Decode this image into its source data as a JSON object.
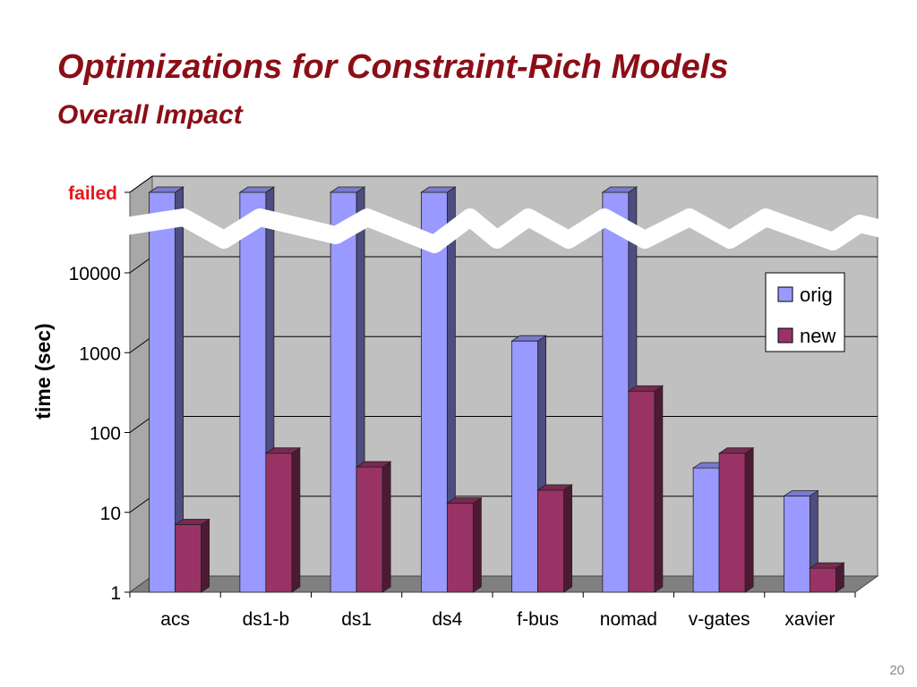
{
  "slide": {
    "title": "Optimizations for Constraint-Rich Models",
    "subtitle": "Overall Impact",
    "page_number": "20"
  },
  "chart_data": {
    "type": "bar",
    "categories": [
      "acs",
      "ds1-b",
      "ds1",
      "ds4",
      "f-bus",
      "nomad",
      "v-gates",
      "xavier"
    ],
    "series": [
      {
        "name": "orig",
        "values": [
          "failed",
          "failed",
          "failed",
          "failed",
          1400,
          "failed",
          36,
          16
        ],
        "color": "#9999FF"
      },
      {
        "name": "new",
        "values": [
          7,
          55,
          37,
          13,
          19,
          330,
          55,
          2
        ],
        "color": "#993366"
      }
    ],
    "ylabel": "time (sec)",
    "y_scale": "log",
    "ylim": [
      1,
      10000
    ],
    "y_ticks": [
      {
        "value": 1,
        "label": "1"
      },
      {
        "value": 10,
        "label": "10"
      },
      {
        "value": 100,
        "label": "100"
      },
      {
        "value": 1000,
        "label": "1000"
      },
      {
        "value": 10000,
        "label": "10000"
      }
    ],
    "failed_label": "failed",
    "failed_label_color": "#E8161B",
    "grid": true,
    "legend_position": "right",
    "wall_color": "#C0C0C0",
    "floor_color": "#808080"
  }
}
